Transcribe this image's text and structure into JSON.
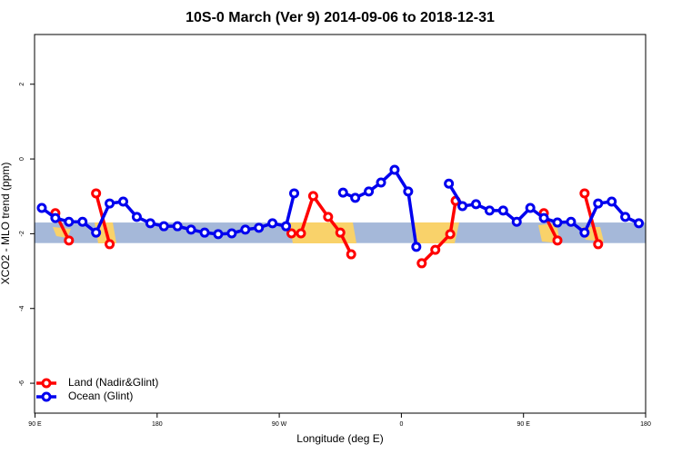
{
  "chart_data": {
    "type": "line",
    "title": "10S-0 March (Ver 9)   2014-09-06 to 2018-12-31",
    "x_label": "Longitude (deg E)",
    "y_label": "XCO2 - MLO trend (ppm)",
    "xlim": [
      90,
      540
    ],
    "ylim": [
      -6.8,
      3.33
    ],
    "xticks": [
      {
        "value": 90,
        "label": "90 E"
      },
      180,
      {
        "value": 270,
        "label": "90 W"
      },
      {
        "value": 360,
        "label": "0"
      },
      {
        "value": 450,
        "label": "90 E"
      },
      {
        "value": 540,
        "label": "180"
      }
    ],
    "yticks": [
      -6,
      -4,
      -2,
      0,
      2
    ],
    "band": {
      "ymin": -2.25,
      "ymax": -1.7,
      "color": "#a5b8d9"
    },
    "legend": "bottom-left",
    "series": [
      {
        "name": "Land (Nadir&Glint)",
        "color": "#ff0000",
        "x": [
          105,
          115,
          null,
          135,
          145,
          null,
          279,
          286,
          295,
          306,
          315,
          323,
          null,
          375,
          385,
          396,
          400,
          null,
          465,
          475,
          null,
          495,
          505
        ],
        "values": [
          -1.45,
          -2.18,
          null,
          -0.92,
          -2.28,
          null,
          -1.99,
          -1.99,
          -0.99,
          -1.55,
          -1.97,
          -2.55,
          null,
          -2.79,
          -2.43,
          -2.01,
          -1.12,
          null,
          -1.45,
          -2.18,
          null,
          -0.92,
          -2.28
        ]
      },
      {
        "name": "Ocean (Glint)",
        "color": "#0000ee",
        "x": [
          95,
          105,
          115,
          125,
          135,
          145,
          155,
          165,
          175,
          185,
          195,
          205,
          215,
          225,
          235,
          245,
          255,
          265,
          275,
          281,
          null,
          317,
          326,
          336,
          345,
          355,
          365,
          371,
          null,
          395,
          405,
          415,
          425,
          435,
          445,
          455,
          465,
          475,
          485,
          495,
          505,
          515,
          525,
          535
        ],
        "values": [
          -1.31,
          -1.58,
          -1.68,
          -1.68,
          -1.97,
          -1.19,
          -1.14,
          -1.55,
          -1.72,
          -1.8,
          -1.8,
          -1.89,
          -1.97,
          -2.01,
          -1.99,
          -1.89,
          -1.84,
          -1.72,
          -1.8,
          -0.92,
          null,
          -0.9,
          -1.04,
          -0.87,
          -0.63,
          -0.29,
          -0.87,
          -2.35,
          null,
          -0.66,
          -1.26,
          -1.21,
          -1.38,
          -1.38,
          -1.68,
          -1.31,
          -1.58,
          -1.7,
          -1.68,
          -1.97,
          -1.19,
          -1.14,
          -1.55,
          -1.72
        ]
      }
    ]
  }
}
